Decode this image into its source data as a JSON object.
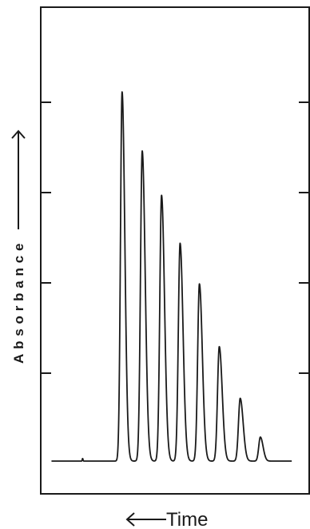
{
  "chart_data": {
    "type": "line",
    "title": "",
    "xlabel": "Time",
    "xlabel_arrow": "left",
    "ylabel": "Absorbance",
    "ylabel_arrow": "up",
    "grid": false,
    "legend": "none",
    "ytick_count": 4,
    "baseline": 0,
    "xlim": [
      0,
      100
    ],
    "ylim": [
      0,
      100
    ],
    "series": [
      {
        "values_description": "trace",
        "peaks": [
          {
            "x": 30.3,
            "height": 100,
            "width": 0.6
          },
          {
            "x": 37.8,
            "height": 84,
            "width": 0.65
          },
          {
            "x": 45.0,
            "height": 72,
            "width": 0.65
          },
          {
            "x": 51.9,
            "height": 59,
            "width": 0.65
          },
          {
            "x": 59.1,
            "height": 48,
            "width": 0.65
          },
          {
            "x": 66.5,
            "height": 31,
            "width": 0.65
          },
          {
            "x": 74.3,
            "height": 17,
            "width": 0.65
          },
          {
            "x": 81.8,
            "height": 6.5,
            "width": 0.6
          }
        ],
        "noise_blip_x": 15.6
      }
    ],
    "colors": {
      "trace": "#1a1a1a",
      "frame": "#1a1a1a"
    }
  }
}
